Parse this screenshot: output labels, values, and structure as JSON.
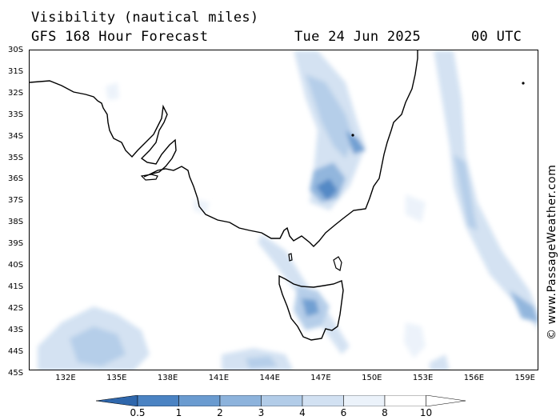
{
  "header": {
    "title": "Visibility (nautical miles)",
    "subtitle": "GFS 168 Hour Forecast",
    "date": "Tue 24 Jun 2025",
    "time": "00 UTC"
  },
  "map": {
    "lat_labels": [
      "30S",
      "31S",
      "32S",
      "33S",
      "34S",
      "35S",
      "36S",
      "37S",
      "38S",
      "39S",
      "40S",
      "41S",
      "42S",
      "43S",
      "44S",
      "45S"
    ],
    "lon_labels": [
      "132E",
      "135E",
      "138E",
      "141E",
      "144E",
      "147E",
      "150E",
      "153E",
      "156E",
      "159E"
    ],
    "land_outline_color": "#000000",
    "ocean_color": "#ffffff"
  },
  "legend": {
    "labels": [
      "0.5",
      "1",
      "2",
      "3",
      "4",
      "6",
      "8",
      "10"
    ],
    "colors": [
      "#2f67ac",
      "#4b83c3",
      "#6a9bd0",
      "#8db3dc",
      "#b2cce8",
      "#d2e1f2",
      "#ebf2fa",
      "#ffffff"
    ]
  },
  "credit": "© www.PassageWeather.com"
}
